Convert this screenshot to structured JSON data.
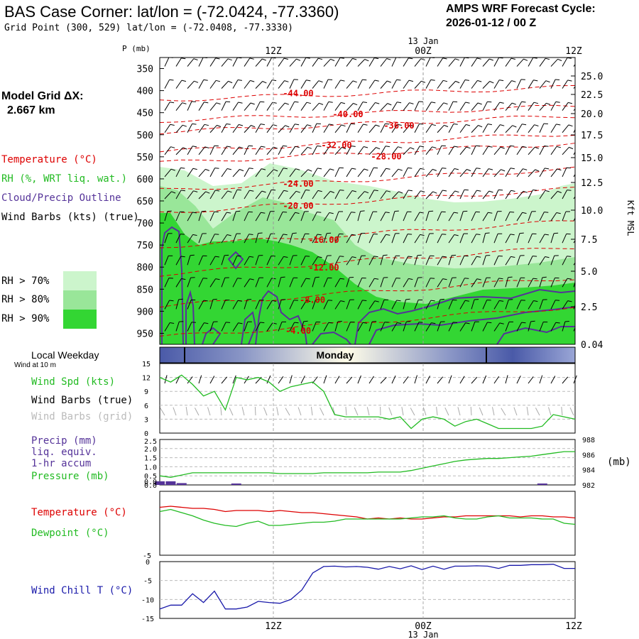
{
  "header": {
    "title": "BAS Case Corner:  lat/lon = (-72.0424, -77.3360)",
    "grid_point": "Grid Point (300, 529) lat/lon = (-72.0408, -77.3330)",
    "cycle_line1": "AMPS WRF Forecast Cycle:",
    "cycle_line2": "2026-01-12 / 00  Z"
  },
  "model_grid": {
    "label": "Model Grid ΔX:",
    "value": "2.667 km"
  },
  "legend": {
    "temperature": "Temperature (°C)",
    "rh": "RH (%, WRT liq. wat.)",
    "cloud": "Cloud/Precip Outline",
    "wind_barbs": "Wind Barbs (kts) (true)",
    "rh70": "RH > 70%",
    "rh80": "RH > 80%",
    "rh90": "RH > 90%",
    "colors": {
      "rh70": "#ccf5cc",
      "rh80": "#99e699",
      "rh90": "#33d633",
      "temp": "#dd0000",
      "cloud": "#553399"
    }
  },
  "weekday": {
    "label": "Local Weekday",
    "day": "Monday",
    "wind_note": "Wind at 10 m"
  },
  "panel_labels": {
    "wind_spd": "Wind Spd (kts)",
    "wind_barbs_true": "Wind Barbs (true)",
    "wind_barbs_grid": "Wind Barbs (grid)",
    "precip_1": "Precip (mm)",
    "precip_2": "liq. equiv.",
    "precip_3": "1-hr accum",
    "pressure": "Pressure (mb)",
    "pressure_unit": "(mb)",
    "temperature": "Temperature (°C)",
    "dewpoint": "Dewpoint (°C)",
    "windchill": "Wind Chill T (°C)"
  },
  "time_axis": {
    "top_date": "13 Jan",
    "bottom_date": "13 Jan",
    "ticks": [
      "12Z",
      "00Z",
      "12Z"
    ]
  },
  "chart_data": [
    {
      "type": "heatmap",
      "title": "Time-height cross section",
      "ylabel": "P (mb)",
      "y2label": "Kft MSL",
      "pressure_ticks": [
        "350",
        "400",
        "450",
        "500",
        "550",
        "600",
        "650",
        "700",
        "750",
        "800",
        "850",
        "900",
        "950"
      ],
      "height_ticks": [
        "25.0",
        "22.5",
        "20.0",
        "17.5",
        "15.0",
        "12.5",
        "10.0",
        "7.5",
        "5.0",
        "2.5",
        "0.04"
      ],
      "temperature_contours": [
        {
          "label": "-44.00",
          "p": 405
        },
        {
          "label": "-40.00",
          "p": 452
        },
        {
          "label": "-36.00",
          "p": 478
        },
        {
          "label": "-32.00",
          "p": 522
        },
        {
          "label": "-28.00",
          "p": 548
        },
        {
          "label": "-24.00",
          "p": 610
        },
        {
          "label": "-20.00",
          "p": 660
        },
        {
          "label": "-16.00",
          "p": 737
        },
        {
          "label": "-12.00",
          "p": 800
        },
        {
          "label": "-8.00",
          "p": 873
        },
        {
          "label": "-4.00",
          "p": 943
        }
      ]
    },
    {
      "type": "line",
      "title": "Wind Spd (kts)",
      "ylim": [
        0,
        15
      ],
      "yticks": [
        "0",
        "3",
        "6",
        "9",
        "12",
        "15"
      ],
      "series": [
        {
          "name": "Wind Spd (kts)",
          "values": [
            12,
            11,
            12.5,
            10.5,
            8,
            9,
            5,
            12,
            11.5,
            12,
            11,
            9,
            10,
            10.5,
            11,
            9,
            4,
            3.5,
            3.5,
            3.5,
            3.5,
            3,
            3.5,
            1,
            3,
            3.5,
            3,
            1.5,
            2.5,
            3,
            2,
            1,
            1,
            1,
            1,
            1.5,
            4,
            3.5,
            3
          ]
        }
      ]
    },
    {
      "type": "line",
      "title": "Precip / Pressure",
      "ylim": [
        0,
        2.5
      ],
      "yticks": [
        "0.0",
        "0.0",
        "0.5",
        "1.0",
        "1.5",
        "2.0",
        "2.5"
      ],
      "y2ticks": [
        "982",
        "984",
        "986",
        "988"
      ],
      "series": [
        {
          "name": "Pressure (mb)",
          "values": [
            983.2,
            983.0,
            983.3,
            983.6,
            983.6,
            983.6,
            983.6,
            983.6,
            983.6,
            983.6,
            983.6,
            983.5,
            983.5,
            983.5,
            983.5,
            983.6,
            983.6,
            983.6,
            983.6,
            983.6,
            983.7,
            983.7,
            983.7,
            983.9,
            984.2,
            984.5,
            984.8,
            985.1,
            985.3,
            985.4,
            985.5,
            985.5,
            985.6,
            985.7,
            985.8,
            986.0,
            986.2,
            986.4,
            986.4
          ]
        },
        {
          "name": "Precip (mm)",
          "values": [
            0.2,
            0.2,
            0.1,
            0,
            0,
            0,
            0,
            0.05,
            0,
            0,
            0,
            0,
            0,
            0,
            0,
            0,
            0,
            0,
            0,
            0,
            0,
            0,
            0,
            0,
            0,
            0,
            0,
            0,
            0,
            0,
            0,
            0,
            0,
            0,
            0,
            0.02,
            0,
            0,
            0
          ]
        }
      ]
    },
    {
      "type": "line",
      "title": "Temperature / Dewpoint",
      "ylim": [
        -5,
        1
      ],
      "yticks": [
        "-5"
      ],
      "series": [
        {
          "name": "Temperature (°C)",
          "values": [
            -0.5,
            -0.4,
            -0.5,
            -0.6,
            -0.6,
            -0.7,
            -0.9,
            -0.8,
            -0.8,
            -0.8,
            -0.9,
            -0.8,
            -0.9,
            -1.0,
            -1.0,
            -1.1,
            -1.2,
            -1.3,
            -1.4,
            -1.6,
            -1.5,
            -1.6,
            -1.5,
            -1.6,
            -1.6,
            -1.5,
            -1.4,
            -1.4,
            -1.3,
            -1.3,
            -1.3,
            -1.3,
            -1.3,
            -1.4,
            -1.3,
            -1.3,
            -1.4,
            -1.4,
            -1.5
          ]
        },
        {
          "name": "Dewpoint (°C)",
          "values": [
            -0.9,
            -0.7,
            -1.0,
            -1.3,
            -1.7,
            -2.0,
            -2.2,
            -2.3,
            -2.0,
            -1.8,
            -2.2,
            -2.2,
            -2.1,
            -2.0,
            -1.9,
            -1.9,
            -1.8,
            -1.6,
            -1.6,
            -1.6,
            -1.6,
            -1.6,
            -1.6,
            -1.5,
            -1.4,
            -1.4,
            -1.3,
            -1.5,
            -1.6,
            -1.6,
            -1.4,
            -1.3,
            -1.5,
            -1.5,
            -1.5,
            -1.6,
            -1.6,
            -2.0,
            -2.1
          ]
        }
      ]
    },
    {
      "type": "line",
      "title": "Wind Chill T (°C)",
      "ylim": [
        -15,
        0
      ],
      "yticks": [
        "0",
        "-5",
        "-10",
        "-15"
      ],
      "series": [
        {
          "name": "Wind Chill T (°C)",
          "values": [
            -12.5,
            -11.5,
            -11.5,
            -8.5,
            -10.8,
            -7.8,
            -12.5,
            -12.5,
            -12,
            -10.5,
            -10.8,
            -11,
            -10,
            -7.5,
            -3,
            -1.3,
            -1.2,
            -1.4,
            -1.3,
            -1.5,
            -2,
            -1.3,
            -1.9,
            -1.1,
            -2.1,
            -1.2,
            -2,
            -1.2,
            -1.2,
            -1.1,
            -1.2,
            -1.8,
            -1,
            -1,
            -0.8,
            -0.8,
            -0.7,
            -1.8,
            -1.8
          ]
        }
      ]
    }
  ]
}
